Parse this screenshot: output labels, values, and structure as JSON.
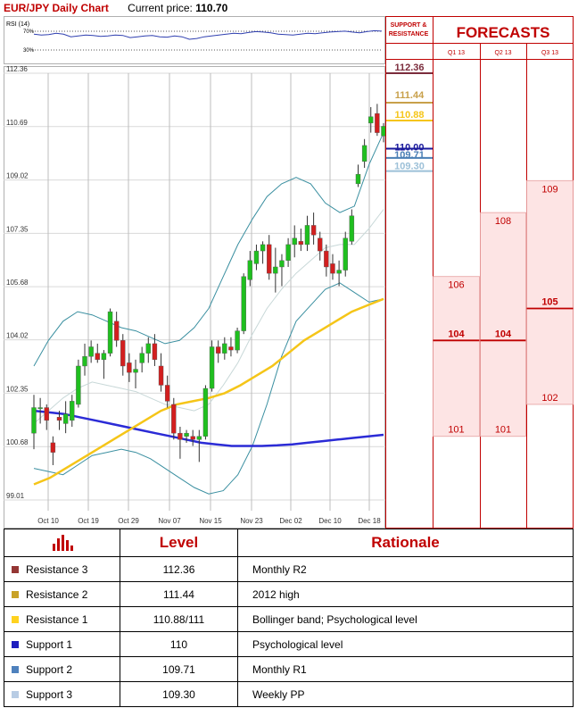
{
  "header": {
    "title": "EUR/JPY Daily Chart",
    "price_label": "Current price:",
    "price_value": "110.70"
  },
  "rsi": {
    "label": "RSI (14)",
    "upper_level": "70%",
    "lower_level": "30%",
    "values": [
      64,
      62,
      63,
      66,
      64,
      58,
      60,
      62,
      61,
      59,
      60,
      62,
      61,
      56,
      58,
      60,
      61,
      58,
      57,
      60,
      58,
      52,
      54,
      58,
      60,
      62,
      64,
      66,
      65,
      68,
      70,
      69,
      67,
      64,
      63,
      62,
      64,
      66,
      65,
      67,
      69,
      70,
      71,
      69,
      67,
      70,
      72,
      71
    ]
  },
  "forecast_panel": {
    "support_resistance_label": "SUPPORT & RESISTANCE",
    "title": "FORECASTS",
    "columns": [
      "Q1 13",
      "Q2 13",
      "Q3 13"
    ],
    "forecasts": [
      {
        "high": 106,
        "base": 104,
        "low": 101
      },
      {
        "high": 108,
        "base": 104,
        "low": 101
      },
      {
        "high": 109,
        "base": 105,
        "low": 102
      }
    ]
  },
  "chart_data": {
    "type": "candlestick",
    "title": "EUR/JPY Daily Chart",
    "y_ticks": [
      "112.36",
      "110.69",
      "109.02",
      "107.35",
      "105.68",
      "104.02",
      "102.35",
      "100.68",
      "99.01"
    ],
    "y_range": [
      99.01,
      112.36
    ],
    "x_ticks": [
      "Oct 10",
      "Oct 19",
      "Oct 29",
      "Nov 07",
      "Nov 15",
      "Nov 23",
      "Dec 02",
      "Dec 10",
      "Dec 18"
    ],
    "levels": [
      {
        "label": "112.36",
        "value": 112.36,
        "color": "#7b2c3c"
      },
      {
        "label": "111.44",
        "value": 111.44,
        "color": "#c8a04a"
      },
      {
        "label": "110.88",
        "value": 110.88,
        "color": "#f5c518"
      },
      {
        "label": "110.00",
        "value": 110.0,
        "color": "#1a1a9c"
      },
      {
        "label": "109.71",
        "value": 109.71,
        "color": "#4a7fb5"
      },
      {
        "label": "109.30",
        "value": 109.3,
        "color": "#9cc0d8"
      }
    ],
    "candles": [
      {
        "o": 101.1,
        "h": 102.3,
        "l": 100.6,
        "c": 101.9
      },
      {
        "o": 101.9,
        "h": 102.2,
        "l": 101.4,
        "c": 101.9
      },
      {
        "o": 101.9,
        "h": 102.0,
        "l": 101.2,
        "c": 101.5
      },
      {
        "o": 100.8,
        "h": 101.0,
        "l": 100.1,
        "c": 100.5
      },
      {
        "o": 101.6,
        "h": 101.8,
        "l": 101.2,
        "c": 101.5
      },
      {
        "o": 101.4,
        "h": 102.1,
        "l": 101.1,
        "c": 101.7
      },
      {
        "o": 101.5,
        "h": 102.3,
        "l": 101.3,
        "c": 102.1
      },
      {
        "o": 102.0,
        "h": 103.4,
        "l": 101.9,
        "c": 103.2
      },
      {
        "o": 103.2,
        "h": 103.9,
        "l": 102.9,
        "c": 103.5
      },
      {
        "o": 103.5,
        "h": 104.0,
        "l": 103.3,
        "c": 103.8
      },
      {
        "o": 103.6,
        "h": 103.9,
        "l": 103.3,
        "c": 103.4
      },
      {
        "o": 103.4,
        "h": 103.7,
        "l": 102.8,
        "c": 103.6
      },
      {
        "o": 103.6,
        "h": 105.0,
        "l": 103.5,
        "c": 104.9
      },
      {
        "o": 104.6,
        "h": 104.9,
        "l": 103.8,
        "c": 104.0
      },
      {
        "o": 104.0,
        "h": 104.2,
        "l": 102.9,
        "c": 103.2
      },
      {
        "o": 103.3,
        "h": 103.6,
        "l": 102.7,
        "c": 103.0
      },
      {
        "o": 103.0,
        "h": 103.4,
        "l": 102.5,
        "c": 103.1
      },
      {
        "o": 103.3,
        "h": 103.8,
        "l": 103.0,
        "c": 103.6
      },
      {
        "o": 103.6,
        "h": 104.1,
        "l": 103.3,
        "c": 103.9
      },
      {
        "o": 103.9,
        "h": 104.2,
        "l": 103.2,
        "c": 103.4
      },
      {
        "o": 103.2,
        "h": 103.6,
        "l": 102.4,
        "c": 102.6
      },
      {
        "o": 102.6,
        "h": 102.9,
        "l": 101.9,
        "c": 102.1
      },
      {
        "o": 102.0,
        "h": 102.2,
        "l": 100.9,
        "c": 101.1
      },
      {
        "o": 101.1,
        "h": 101.3,
        "l": 100.3,
        "c": 100.9
      },
      {
        "o": 101.0,
        "h": 101.2,
        "l": 100.8,
        "c": 101.1
      },
      {
        "o": 101.0,
        "h": 101.2,
        "l": 100.7,
        "c": 100.9
      },
      {
        "o": 100.9,
        "h": 101.2,
        "l": 100.2,
        "c": 101.0
      },
      {
        "o": 101.0,
        "h": 102.6,
        "l": 100.9,
        "c": 102.5
      },
      {
        "o": 102.5,
        "h": 104.0,
        "l": 102.4,
        "c": 103.8
      },
      {
        "o": 103.8,
        "h": 104.0,
        "l": 103.3,
        "c": 103.6
      },
      {
        "o": 103.6,
        "h": 104.1,
        "l": 103.4,
        "c": 103.9
      },
      {
        "o": 103.8,
        "h": 104.1,
        "l": 103.5,
        "c": 103.7
      },
      {
        "o": 103.7,
        "h": 104.4,
        "l": 103.6,
        "c": 104.3
      },
      {
        "o": 104.3,
        "h": 106.1,
        "l": 104.2,
        "c": 106.0
      },
      {
        "o": 105.9,
        "h": 106.8,
        "l": 105.7,
        "c": 106.5
      },
      {
        "o": 106.4,
        "h": 107.0,
        "l": 106.2,
        "c": 106.8
      },
      {
        "o": 106.8,
        "h": 107.1,
        "l": 106.4,
        "c": 107.0
      },
      {
        "o": 107.0,
        "h": 107.3,
        "l": 105.9,
        "c": 106.1
      },
      {
        "o": 106.1,
        "h": 106.9,
        "l": 105.5,
        "c": 106.3
      },
      {
        "o": 106.3,
        "h": 106.7,
        "l": 105.7,
        "c": 106.5
      },
      {
        "o": 106.5,
        "h": 107.2,
        "l": 106.3,
        "c": 107.0
      },
      {
        "o": 107.0,
        "h": 107.6,
        "l": 106.6,
        "c": 107.2
      },
      {
        "o": 107.1,
        "h": 107.5,
        "l": 106.8,
        "c": 107.0
      },
      {
        "o": 107.0,
        "h": 107.9,
        "l": 106.8,
        "c": 107.6
      },
      {
        "o": 107.6,
        "h": 108.0,
        "l": 107.0,
        "c": 107.3
      },
      {
        "o": 107.2,
        "h": 107.4,
        "l": 106.5,
        "c": 106.8
      },
      {
        "o": 106.8,
        "h": 107.0,
        "l": 106.0,
        "c": 106.3
      },
      {
        "o": 106.4,
        "h": 106.7,
        "l": 105.9,
        "c": 106.1
      },
      {
        "o": 106.1,
        "h": 106.5,
        "l": 105.7,
        "c": 106.2
      },
      {
        "o": 106.2,
        "h": 107.4,
        "l": 106.0,
        "c": 107.2
      },
      {
        "o": 107.1,
        "h": 108.1,
        "l": 107.0,
        "c": 107.9
      },
      {
        "o": 108.9,
        "h": 109.5,
        "l": 108.8,
        "c": 109.2
      },
      {
        "o": 109.6,
        "h": 110.3,
        "l": 109.4,
        "c": 110.1
      },
      {
        "o": 110.8,
        "h": 111.3,
        "l": 110.5,
        "c": 111.0
      },
      {
        "o": 111.1,
        "h": 111.4,
        "l": 110.4,
        "c": 110.5
      },
      {
        "o": 110.4,
        "h": 110.8,
        "l": 110.2,
        "c": 110.7
      }
    ],
    "ma_long": [
      101.8,
      101.75,
      101.7,
      101.6,
      101.5,
      101.4,
      101.3,
      101.2,
      101.1,
      101.0,
      100.9,
      100.8,
      100.75,
      100.7,
      100.7,
      100.7,
      100.72,
      100.75,
      100.8,
      100.85,
      100.9,
      100.95,
      101.0,
      101.05
    ],
    "ma_mid": [
      99.5,
      99.7,
      100.0,
      100.3,
      100.6,
      100.9,
      101.2,
      101.5,
      101.8,
      102.0,
      102.1,
      102.2,
      102.35,
      102.6,
      102.9,
      103.2,
      103.6,
      104.0,
      104.3,
      104.6,
      104.9,
      105.1,
      105.3
    ],
    "bb_upper": [
      103.2,
      104.0,
      104.6,
      104.9,
      104.8,
      104.6,
      104.4,
      104.3,
      104.1,
      103.9,
      104.0,
      104.4,
      105.0,
      106.0,
      107.0,
      107.8,
      108.5,
      108.9,
      109.1,
      108.9,
      108.3,
      108.0,
      108.2,
      109.5,
      110.5
    ],
    "bb_lower": [
      100.0,
      99.9,
      99.8,
      100.1,
      100.4,
      100.5,
      100.6,
      100.5,
      100.3,
      100.0,
      99.7,
      99.4,
      99.2,
      99.3,
      99.8,
      100.7,
      102.0,
      103.5,
      104.6,
      105.1,
      105.6,
      105.8,
      105.5,
      105.2,
      105.3
    ],
    "bb_mid": [
      101.4,
      101.8,
      102.2,
      102.5,
      102.7,
      102.6,
      102.5,
      102.4,
      102.2,
      102.0,
      101.9,
      101.8,
      102.0,
      102.6,
      103.3,
      104.2,
      105.0,
      105.6,
      106.1,
      106.5,
      106.9,
      107.0,
      107.0,
      107.5,
      108.1
    ]
  },
  "table": {
    "level_header": "Level",
    "rationale_header": "Rationale",
    "rows": [
      {
        "name": "Resistance 3",
        "level": "112.36",
        "rationale": "Monthly R2",
        "color": "#943634"
      },
      {
        "name": "Resistance 2",
        "level": "111.44",
        "rationale": "2012 high",
        "color": "#c9a227"
      },
      {
        "name": "Resistance 1",
        "level": "110.88/111",
        "rationale": "Bollinger band; Psychological level",
        "color": "#ffd21f"
      },
      {
        "name": "Support 1",
        "level": "110",
        "rationale": "Psychological level",
        "color": "#1f1fbf"
      },
      {
        "name": "Support 2",
        "level": "109.71",
        "rationale": "Monthly R1",
        "color": "#4f81bd"
      },
      {
        "name": "Support 3",
        "level": "109.30",
        "rationale": "Weekly PP",
        "color": "#b8cce4"
      }
    ]
  }
}
